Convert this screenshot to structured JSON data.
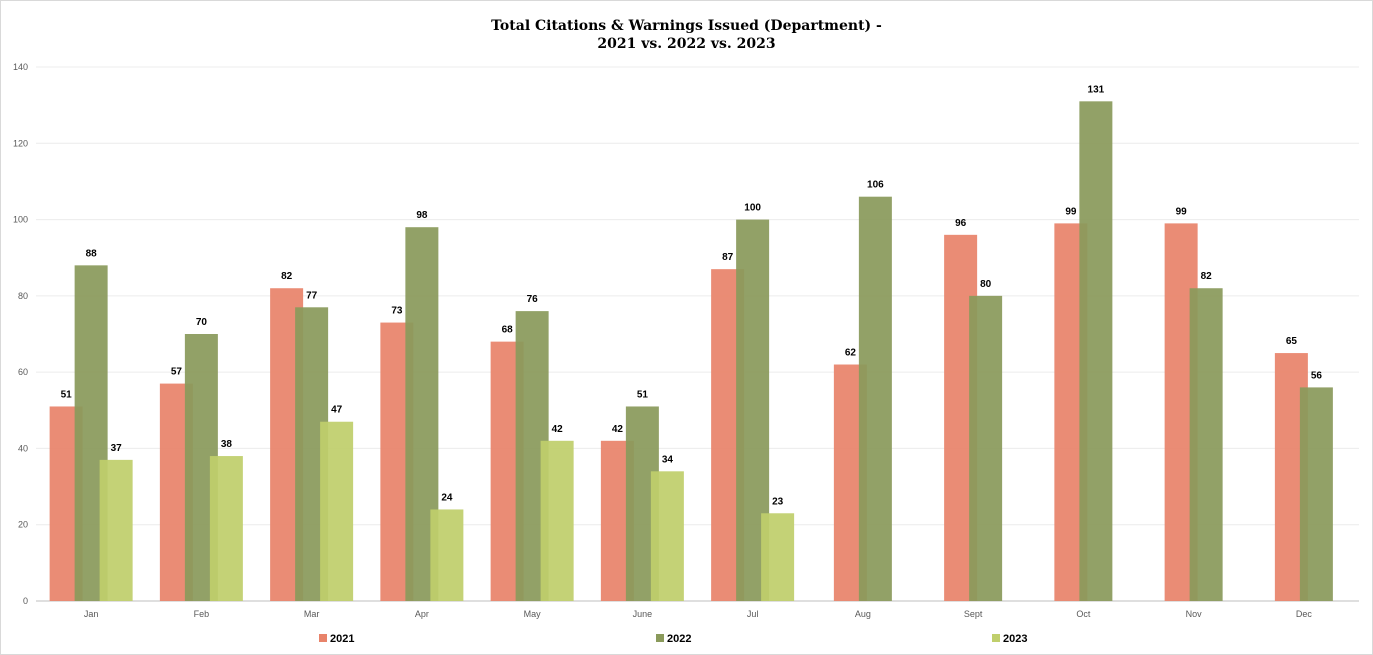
{
  "chart_data": {
    "type": "bar",
    "title": "Total Citations & Warnings Issued (Department) -\n2021 vs. 2022 vs. 2023",
    "categories": [
      "Jan",
      "Feb",
      "Mar",
      "Apr",
      "May",
      "June",
      "Jul",
      "Aug",
      "Sept",
      "Oct",
      "Nov",
      "Dec"
    ],
    "series": [
      {
        "name": "2021",
        "color": "#e8836a",
        "values": [
          51,
          57,
          82,
          73,
          68,
          42,
          87,
          62,
          96,
          99,
          99,
          65
        ]
      },
      {
        "name": "2022",
        "color": "#8a9a5b",
        "values": [
          88,
          70,
          77,
          98,
          76,
          51,
          100,
          106,
          80,
          131,
          82,
          56
        ]
      },
      {
        "name": "2023",
        "color": "#c0cf6c",
        "values": [
          37,
          38,
          47,
          24,
          42,
          34,
          23,
          null,
          null,
          null,
          null,
          null
        ]
      }
    ],
    "ylim": [
      0,
      140
    ],
    "yticks": [
      0,
      20,
      40,
      60,
      80,
      100,
      120,
      140
    ],
    "grid": true,
    "legend": "bottom"
  }
}
